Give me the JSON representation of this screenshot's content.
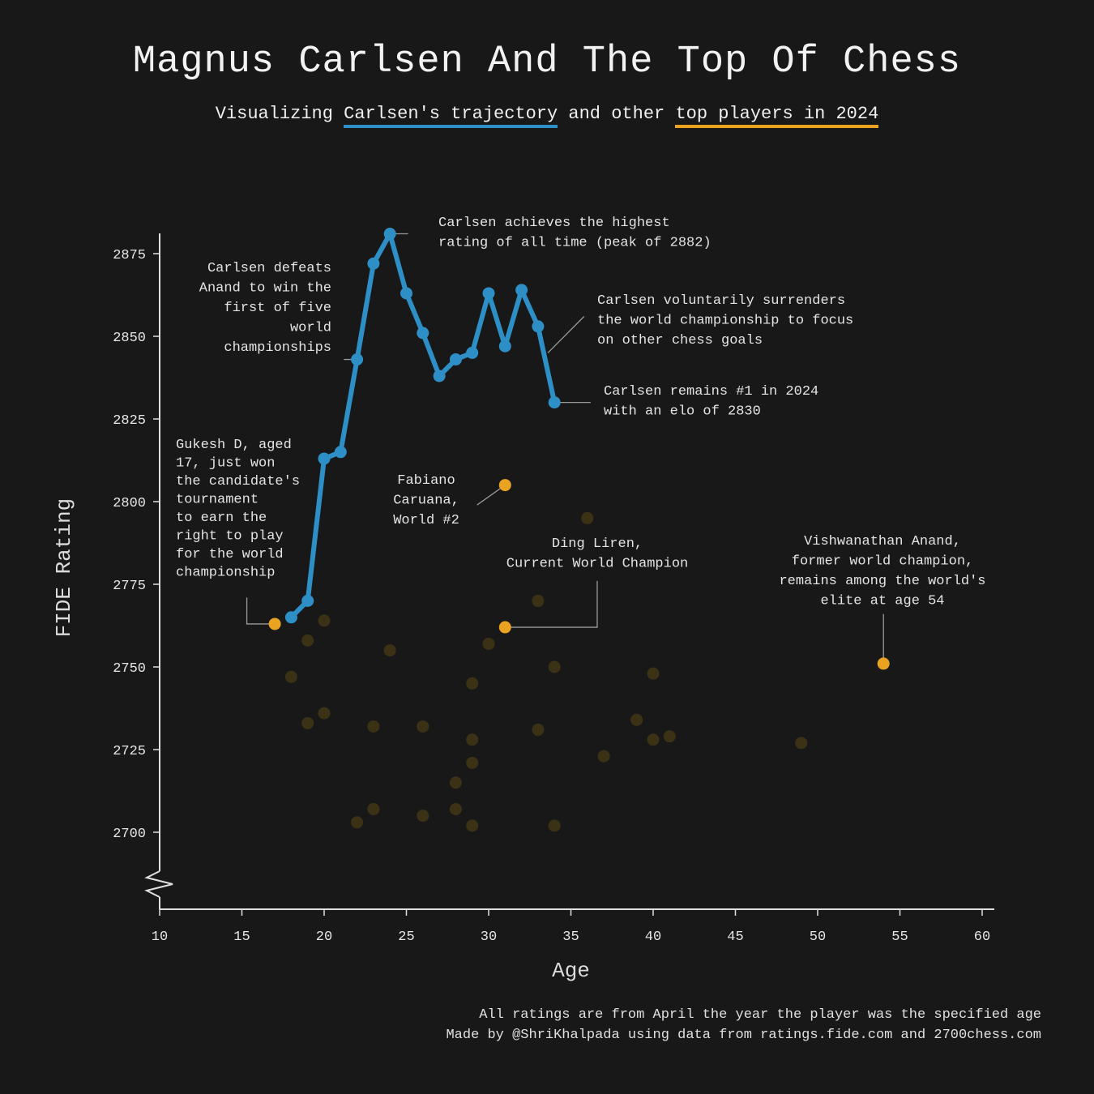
{
  "title": "Magnus Carlsen And The Top Of Chess",
  "subtitle": {
    "prefix": "Visualizing ",
    "highlight1": "Carlsen's trajectory",
    "middle": " and other ",
    "highlight2": "top players in 2024"
  },
  "footer": {
    "line1": "All ratings are from April the year the player was the specified age",
    "line2": "Made by @ShriKhalpada using data from ratings.fide.com and 2700chess.com"
  },
  "colors": {
    "background": "#181818",
    "carlsen": "#2e8fc6",
    "highlight": "#e9a320",
    "others": "#3b3216",
    "axis": "#e0e0e0",
    "leader": "#9a9a9a"
  },
  "chart_data": {
    "type": "scatter",
    "xlabel": "Age",
    "ylabel": "FIDE Rating",
    "xlim": [
      10,
      61
    ],
    "ylim": [
      2675,
      2878
    ],
    "xticks": [
      10,
      15,
      20,
      25,
      30,
      35,
      40,
      45,
      50,
      55,
      60
    ],
    "yticks": [
      2700,
      2725,
      2750,
      2775,
      2800,
      2825,
      2850,
      2875
    ],
    "axis_break": true,
    "grid": false,
    "series": [
      {
        "style": "line",
        "x": [
          18,
          19,
          20,
          21,
          22,
          23,
          24,
          25,
          26,
          27,
          28,
          29,
          30,
          31,
          32,
          33,
          34
        ],
        "y": [
          2765,
          2770,
          2813,
          2815,
          2843,
          2872,
          2881,
          2863,
          2851,
          2838,
          2843,
          2845,
          2863,
          2847,
          2864,
          2853,
          2830
        ]
      },
      {
        "style": "highlight",
        "x": [
          17,
          31,
          31,
          54
        ],
        "y": [
          2763,
          2805,
          2762,
          2751
        ]
      },
      {
        "style": "faded",
        "x": [
          18,
          19,
          19,
          20,
          20,
          22,
          23,
          23,
          24,
          26,
          26,
          28,
          28,
          29,
          29,
          29,
          29,
          30,
          33,
          33,
          34,
          34,
          36,
          37,
          39,
          40,
          40,
          41,
          49
        ],
        "y": [
          2747,
          2758,
          2733,
          2764,
          2736,
          2703,
          2732,
          2707,
          2755,
          2732,
          2705,
          2715,
          2707,
          2745,
          2728,
          2721,
          2702,
          2757,
          2770,
          2731,
          2750,
          2702,
          2795,
          2723,
          2734,
          2748,
          2728,
          2729,
          2727
        ]
      }
    ],
    "annotations": [
      {
        "lines": [
          "Carlsen achieves the highest",
          "rating of all time (peak of 2882)"
        ],
        "point": [
          24,
          2881
        ],
        "align": "left"
      },
      {
        "lines": [
          "Carlsen defeats",
          "Anand to win the",
          "first of five",
          "world",
          "championships"
        ],
        "point": [
          22,
          2843
        ],
        "align": "right"
      },
      {
        "lines": [
          "Carlsen voluntarily surrenders",
          "the world championship to focus",
          "on other chess goals"
        ],
        "point": [
          33.6,
          2845
        ],
        "align": "left"
      },
      {
        "lines": [
          "Carlsen remains #1 in 2024",
          "with an elo of 2830"
        ],
        "point": [
          34,
          2830
        ],
        "align": "left"
      },
      {
        "lines": [
          "Gukesh D, aged",
          "17, just won",
          "the candidate's",
          "tournament",
          "to earn the",
          "right to play",
          "for the world",
          "championship"
        ],
        "point": [
          17,
          2763
        ],
        "align": "left"
      },
      {
        "lines": [
          "Fabiano",
          "Caruana,",
          "World #2"
        ],
        "point": [
          31,
          2805
        ],
        "align": "center"
      },
      {
        "lines": [
          "Ding Liren,",
          "Current World Champion"
        ],
        "point": [
          31,
          2762
        ],
        "align": "center"
      },
      {
        "lines": [
          "Vishwanathan Anand,",
          "former world champion,",
          "remains among the world's",
          "elite at age 54"
        ],
        "point": [
          54,
          2751
        ],
        "align": "center"
      }
    ]
  }
}
